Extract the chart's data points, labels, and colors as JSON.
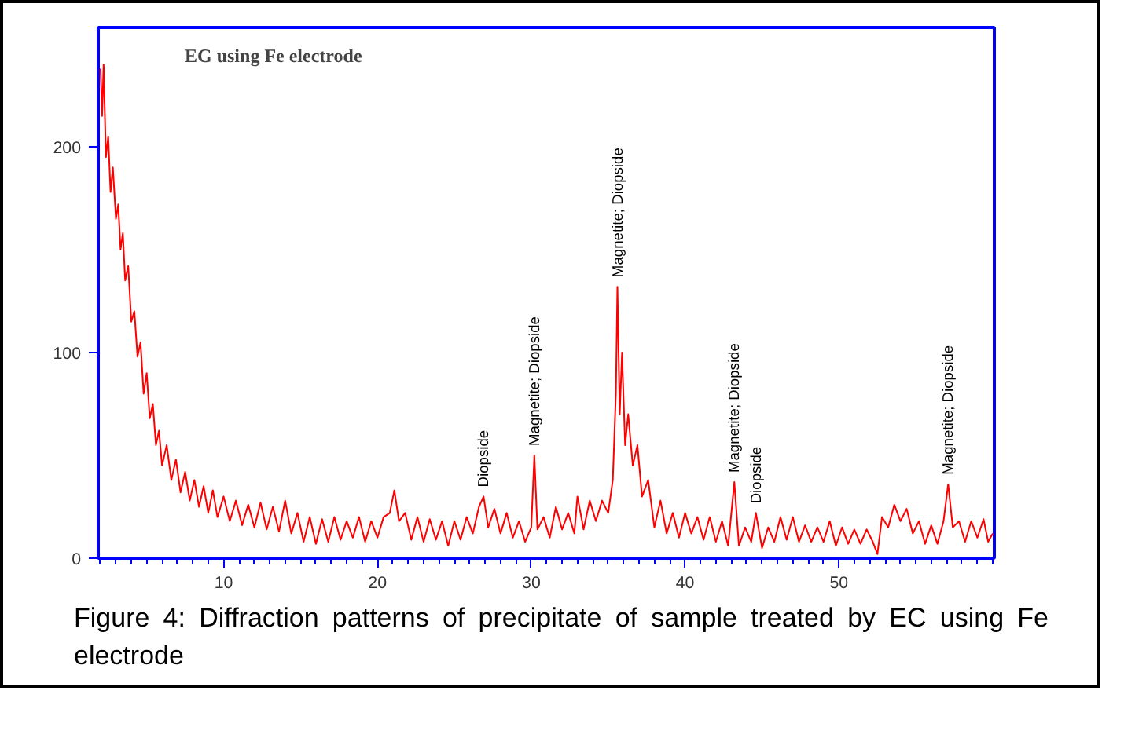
{
  "chart_data": {
    "type": "line",
    "title": "EG using Fe electrode",
    "x": [
      2.0,
      2.1,
      2.2,
      2.35,
      2.5,
      2.65,
      2.8,
      3.0,
      3.15,
      3.3,
      3.45,
      3.6,
      3.8,
      4.0,
      4.2,
      4.4,
      4.6,
      4.8,
      5.0,
      5.2,
      5.4,
      5.6,
      5.8,
      6.0,
      6.3,
      6.6,
      6.9,
      7.2,
      7.5,
      7.8,
      8.1,
      8.4,
      8.7,
      9.0,
      9.3,
      9.6,
      10.0,
      10.4,
      10.8,
      11.2,
      11.6,
      12.0,
      12.4,
      12.8,
      13.2,
      13.6,
      14.0,
      14.4,
      14.8,
      15.2,
      15.6,
      16.0,
      16.4,
      16.8,
      17.2,
      17.6,
      18.0,
      18.4,
      18.8,
      19.2,
      19.6,
      20.0,
      20.4,
      20.8,
      21.1,
      21.4,
      21.8,
      22.2,
      22.6,
      23.0,
      23.4,
      23.8,
      24.2,
      24.6,
      25.0,
      25.4,
      25.8,
      26.2,
      26.6,
      26.9,
      27.2,
      27.6,
      28.0,
      28.4,
      28.8,
      29.2,
      29.6,
      30.0,
      30.2,
      30.4,
      30.8,
      31.2,
      31.6,
      32.0,
      32.4,
      32.8,
      33.0,
      33.4,
      33.8,
      34.2,
      34.6,
      35.0,
      35.3,
      35.5,
      35.6,
      35.75,
      35.9,
      36.1,
      36.3,
      36.6,
      36.9,
      37.2,
      37.6,
      38.0,
      38.4,
      38.8,
      39.2,
      39.6,
      40.0,
      40.4,
      40.8,
      41.2,
      41.6,
      42.0,
      42.4,
      42.8,
      43.2,
      43.5,
      43.9,
      44.3,
      44.6,
      45.0,
      45.4,
      45.8,
      46.2,
      46.6,
      47.0,
      47.4,
      47.8,
      48.2,
      48.6,
      49.0,
      49.4,
      49.8,
      50.2,
      50.6,
      51.0,
      51.4,
      51.8,
      52.2,
      52.5,
      52.8,
      53.2,
      53.6,
      54.0,
      54.4,
      54.8,
      55.2,
      55.6,
      56.0,
      56.4,
      56.8,
      57.1,
      57.4,
      57.8,
      58.2,
      58.6,
      59.0,
      59.4,
      59.7,
      60.0
    ],
    "series": [
      {
        "color": "#ff0000",
        "values": [
          238,
          215,
          240,
          195,
          205,
          178,
          190,
          165,
          172,
          150,
          158,
          135,
          142,
          115,
          120,
          98,
          105,
          80,
          90,
          68,
          75,
          55,
          62,
          45,
          55,
          38,
          48,
          32,
          42,
          28,
          38,
          25,
          35,
          22,
          33,
          20,
          30,
          18,
          28,
          16,
          26,
          15,
          27,
          14,
          25,
          13,
          28,
          12,
          22,
          8,
          20,
          7,
          19,
          8,
          20,
          9,
          18,
          10,
          20,
          8,
          18,
          10,
          20,
          22,
          33,
          18,
          22,
          9,
          20,
          8,
          19,
          9,
          18,
          6,
          18,
          9,
          20,
          12,
          25,
          30,
          15,
          24,
          12,
          22,
          10,
          18,
          8,
          15,
          50,
          14,
          20,
          10,
          25,
          14,
          22,
          12,
          30,
          14,
          28,
          18,
          28,
          22,
          38,
          80,
          132,
          70,
          100,
          55,
          70,
          45,
          55,
          30,
          38,
          15,
          28,
          12,
          22,
          10,
          22,
          12,
          20,
          9,
          20,
          8,
          18,
          6,
          37,
          6,
          15,
          8,
          22,
          5,
          15,
          8,
          20,
          9,
          20,
          8,
          16,
          8,
          15,
          8,
          18,
          6,
          15,
          7,
          14,
          7,
          14,
          8,
          2,
          20,
          15,
          26,
          18,
          24,
          12,
          18,
          7,
          16,
          7,
          18,
          36,
          15,
          18,
          8,
          18,
          10,
          19,
          8,
          12
        ]
      }
    ],
    "xlim": [
      1.85,
      60.1
    ],
    "ylim": [
      0,
      258
    ],
    "xticks": [
      10,
      20,
      30,
      40,
      50
    ],
    "yticks": [
      0,
      100,
      200
    ],
    "grid": false,
    "annotations": [
      {
        "text": "Diopside",
        "x": 26.9,
        "y": 30
      },
      {
        "text": "Magnetite; Diopside",
        "x": 30.2,
        "y": 50
      },
      {
        "text": "Magnetite; Diopside",
        "x": 35.6,
        "y": 132
      },
      {
        "text": "Magnetite; Diopside",
        "x": 43.2,
        "y": 37
      },
      {
        "text": "Diopside",
        "x": 44.6,
        "y": 22
      },
      {
        "text": "Magnetite; Diopside",
        "x": 57.1,
        "y": 36
      },
      "Figure 4:  Diffraction patterns of precipitate of sample treated by EC using Fe electrode"
    ]
  }
}
